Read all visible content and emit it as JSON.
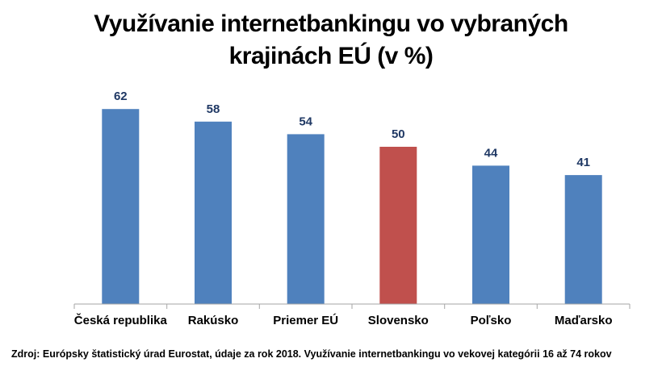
{
  "chart_data": {
    "type": "bar",
    "title_lines": [
      "Využívanie internetbankingu vo vybraných",
      "krajinách EÚ (v %)"
    ],
    "categories": [
      "Česká republika",
      "Rakúsko",
      "Priemer EÚ",
      "Slovensko",
      "Poľsko",
      "Maďarsko"
    ],
    "values": [
      62,
      58,
      54,
      50,
      44,
      41
    ],
    "highlight": "Slovensko",
    "colors": {
      "bar": "#4f81bd",
      "highlight": "#c0504d",
      "axis": "#a6a6a6"
    },
    "xlabel": "",
    "ylabel": "",
    "ylim": [
      0,
      70
    ],
    "grid": false,
    "legend": "none"
  },
  "source_note": "Zdroj: Európsky štatistický úrad Eurostat, údaje za rok 2018. Využívanie internetbankingu vo vekovej kategórii 16 až 74 rokov"
}
